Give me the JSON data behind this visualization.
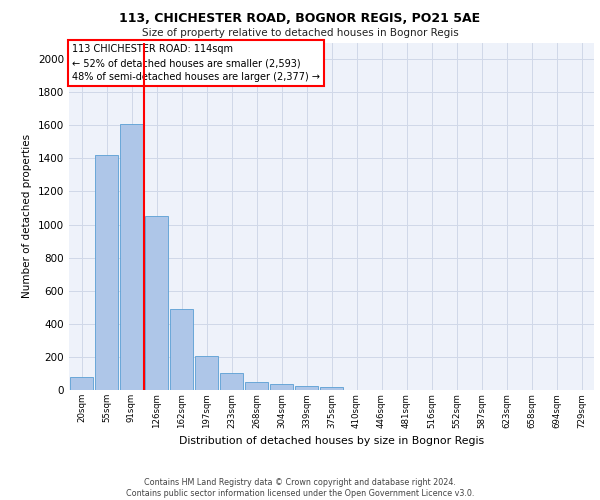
{
  "title1": "113, CHICHESTER ROAD, BOGNOR REGIS, PO21 5AE",
  "title2": "Size of property relative to detached houses in Bognor Regis",
  "xlabel": "Distribution of detached houses by size in Bognor Regis",
  "ylabel": "Number of detached properties",
  "categories": [
    "20sqm",
    "55sqm",
    "91sqm",
    "126sqm",
    "162sqm",
    "197sqm",
    "233sqm",
    "268sqm",
    "304sqm",
    "339sqm",
    "375sqm",
    "410sqm",
    "446sqm",
    "481sqm",
    "516sqm",
    "552sqm",
    "587sqm",
    "623sqm",
    "658sqm",
    "694sqm",
    "729sqm"
  ],
  "values": [
    80,
    1420,
    1610,
    1050,
    490,
    205,
    105,
    48,
    35,
    25,
    20,
    0,
    0,
    0,
    0,
    0,
    0,
    0,
    0,
    0,
    0
  ],
  "bar_color": "#aec6e8",
  "bar_edge_color": "#5a9fd4",
  "grid_color": "#d0d8e8",
  "vline_color": "red",
  "vline_x_index": 2.5,
  "annotation_text": "113 CHICHESTER ROAD: 114sqm\n← 52% of detached houses are smaller (2,593)\n48% of semi-detached houses are larger (2,377) →",
  "annotation_box_color": "white",
  "annotation_box_edge_color": "red",
  "ylim": [
    0,
    2100
  ],
  "yticks": [
    0,
    200,
    400,
    600,
    800,
    1000,
    1200,
    1400,
    1600,
    1800,
    2000
  ],
  "footer": "Contains HM Land Registry data © Crown copyright and database right 2024.\nContains public sector information licensed under the Open Government Licence v3.0.",
  "bg_color": "#eef2fa"
}
